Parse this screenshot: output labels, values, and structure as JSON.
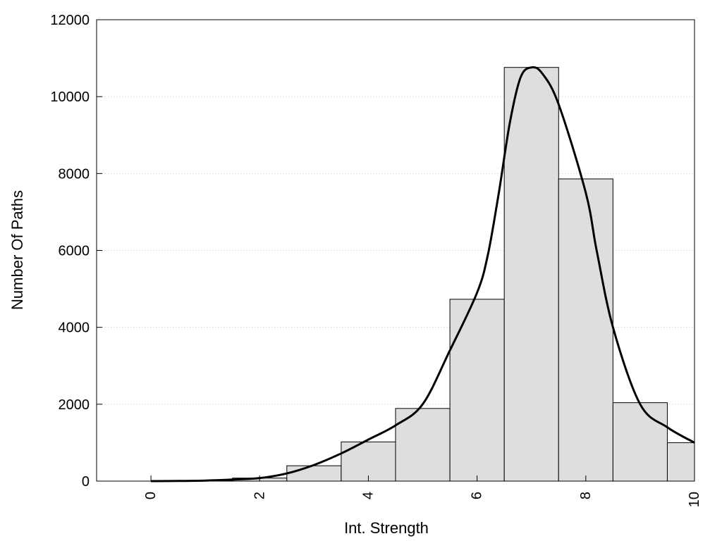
{
  "chart_data": {
    "type": "bar",
    "title": "",
    "xlabel": "Int. Strength",
    "ylabel": "Number Of Paths",
    "xlim": [
      -1,
      10
    ],
    "ylim": [
      0,
      12000
    ],
    "xticks": [
      0,
      2,
      4,
      6,
      8,
      10
    ],
    "xtick_labels": [
      "0",
      "2",
      "4",
      "6",
      "8",
      "10"
    ],
    "yticks": [
      0,
      2000,
      4000,
      6000,
      8000,
      10000,
      12000
    ],
    "ytick_labels": [
      "0",
      "2000",
      "4000",
      "6000",
      "8000",
      "10000",
      "12000"
    ],
    "grid": "horizontal dotted",
    "bar_color": "#dedede",
    "bins": [
      {
        "x": 0,
        "value": 0
      },
      {
        "x": 1,
        "value": 10
      },
      {
        "x": 2,
        "value": 80
      },
      {
        "x": 3,
        "value": 400
      },
      {
        "x": 4,
        "value": 1020
      },
      {
        "x": 5,
        "value": 1890
      },
      {
        "x": 6,
        "value": 4730
      },
      {
        "x": 7,
        "value": 10760
      },
      {
        "x": 8,
        "value": 7860
      },
      {
        "x": 9,
        "value": 2040
      },
      {
        "x": 10,
        "value": 1000
      }
    ],
    "density_curve": {
      "x": [
        0,
        0.5,
        1,
        1.5,
        2,
        2.5,
        3,
        3.5,
        4,
        4.5,
        5,
        5.5,
        6,
        6.2,
        6.4,
        6.6,
        6.8,
        7,
        7.2,
        7.5,
        8,
        8.2,
        8.5,
        9,
        9.5,
        10
      ],
      "y": [
        0,
        5,
        15,
        40,
        80,
        200,
        420,
        720,
        1080,
        1450,
        2000,
        3400,
        4900,
        5900,
        7500,
        9300,
        10500,
        10760,
        10600,
        9800,
        7500,
        6000,
        4000,
        2000,
        1400,
        1000
      ]
    }
  }
}
